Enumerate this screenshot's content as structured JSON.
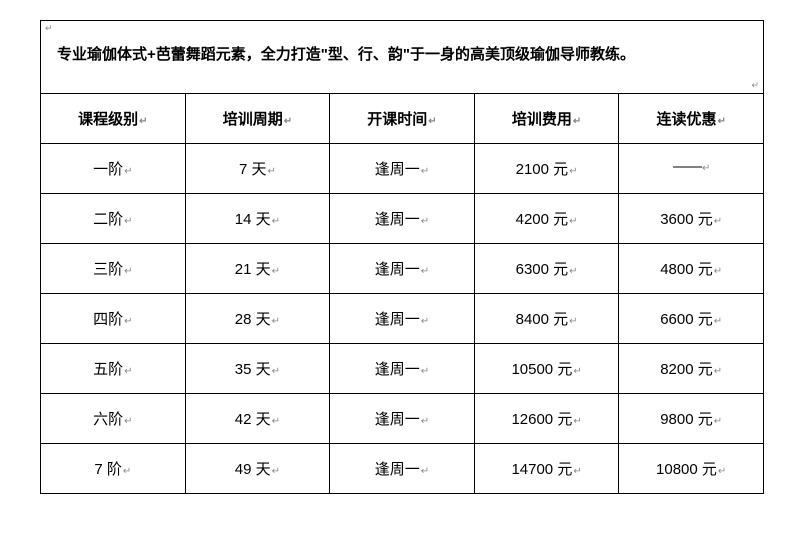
{
  "title": "专业瑜伽体式+芭蕾舞蹈元素，全力打造\"型、行、韵\"于一身的高美顶级瑜伽导师教练。",
  "columns": [
    "课程级别",
    "培训周期",
    "开课时间",
    "培训费用",
    "连读优惠"
  ],
  "rows": [
    {
      "level": "一阶",
      "period": "7 天",
      "start": "逢周一",
      "cost": "2100 元",
      "discount": "——"
    },
    {
      "level": "二阶",
      "period": "14 天",
      "start": "逢周一",
      "cost": "4200 元",
      "discount": "3600 元"
    },
    {
      "level": "三阶",
      "period": "21 天",
      "start": "逢周一",
      "cost": "6300 元",
      "discount": "4800 元"
    },
    {
      "level": "四阶",
      "period": "28 天",
      "start": "逢周一",
      "cost": "8400 元",
      "discount": "6600 元"
    },
    {
      "level": "五阶",
      "period": "35 天",
      "start": "逢周一",
      "cost": "10500 元",
      "discount": "8200 元"
    },
    {
      "level": "六阶",
      "period": "42 天",
      "start": "逢周一",
      "cost": "12600 元",
      "discount": "9800 元"
    },
    {
      "level": "7 阶",
      "period": "49 天",
      "start": "逢周一",
      "cost": "14700 元",
      "discount": "10800 元"
    }
  ],
  "styling": {
    "border_color": "#000000",
    "text_color": "#000000",
    "mark_color": "#888888",
    "background_color": "#ffffff",
    "font_family": "Microsoft YaHei",
    "title_fontsize": 15,
    "header_fontsize": 15,
    "cell_fontsize": 15,
    "title_fontweight": "bold",
    "header_fontweight": "bold",
    "cell_padding_v": 14,
    "cell_padding_h": 8,
    "col_count": 5,
    "col_widths_pct": [
      20,
      20,
      20,
      20,
      20
    ]
  }
}
